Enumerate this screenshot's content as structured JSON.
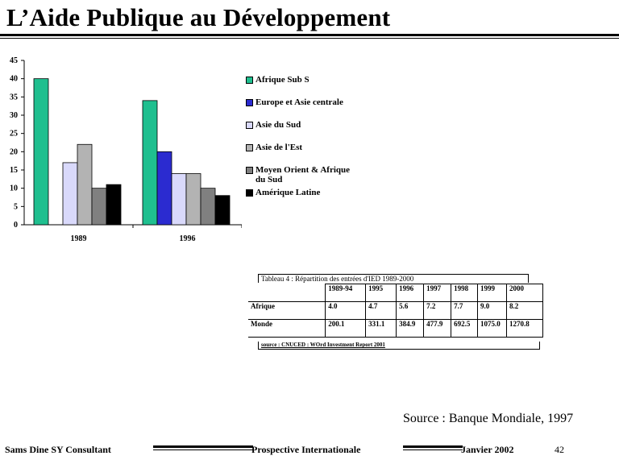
{
  "slide": {
    "title": "L’Aide Publique au Développement",
    "source": "Source : Banque Mondiale,  1997"
  },
  "chart_data": {
    "type": "bar",
    "categories": [
      "1989",
      "1996"
    ],
    "ylim": [
      0,
      45
    ],
    "yticks": [
      "0",
      "5",
      "10",
      "15",
      "20",
      "25",
      "30",
      "35",
      "40",
      "45"
    ],
    "legend_position": "right",
    "series": [
      {
        "name": "Afrique Sub S",
        "color": "#1fbf8f",
        "values": [
          40,
          34
        ]
      },
      {
        "name": "Europe et Asie centrale",
        "color": "#2b2bd0",
        "values": [
          0,
          20
        ]
      },
      {
        "name": "Asie du Sud",
        "color": "#d9d9fb",
        "values": [
          17,
          14
        ]
      },
      {
        "name": "Asie de l'Est",
        "color": "#b3b3b3",
        "values": [
          22,
          14
        ]
      },
      {
        "name": "Moyen Orient & Afrique du Sud",
        "color": "#808080",
        "values": [
          10,
          10
        ]
      },
      {
        "name": "Amérique Latine",
        "color": "#000000",
        "values": [
          11,
          8
        ]
      }
    ],
    "legend": [
      {
        "line1": "Afrique Sub S",
        "line2": ""
      },
      {
        "line1": "Europe et Asie centrale",
        "line2": ""
      },
      {
        "line1": "Asie du Sud",
        "line2": ""
      },
      {
        "line1": "Asie de l'Est",
        "line2": ""
      },
      {
        "line1": "Moyen Orient & Afrique",
        "line2": "du Sud"
      },
      {
        "line1": "Amérique Latine",
        "line2": ""
      }
    ]
  },
  "table": {
    "caption": "Tableau 4 : Répartition des entrées d'IED 1989-2000",
    "columns": [
      "1989-94",
      "1995",
      "1996",
      "1997",
      "1998",
      "1999",
      "2000"
    ],
    "rows": [
      {
        "label": "Afrique",
        "cells": [
          "4.0",
          "4.7",
          "5.6",
          "7.2",
          "7.7",
          "9.0",
          "8.2"
        ]
      },
      {
        "label": "Monde",
        "cells": [
          "200.1",
          "331.1",
          "384.9",
          "477.9",
          "692.5",
          "1075.0",
          "1270.8"
        ]
      }
    ],
    "source": "source : CNUCED : WOrd Investment Report 2001"
  },
  "footer": {
    "author": "Sams Dine SY Consultant",
    "topic": "Prospective Internationale",
    "date": "Janvier 2002",
    "page": "42"
  }
}
